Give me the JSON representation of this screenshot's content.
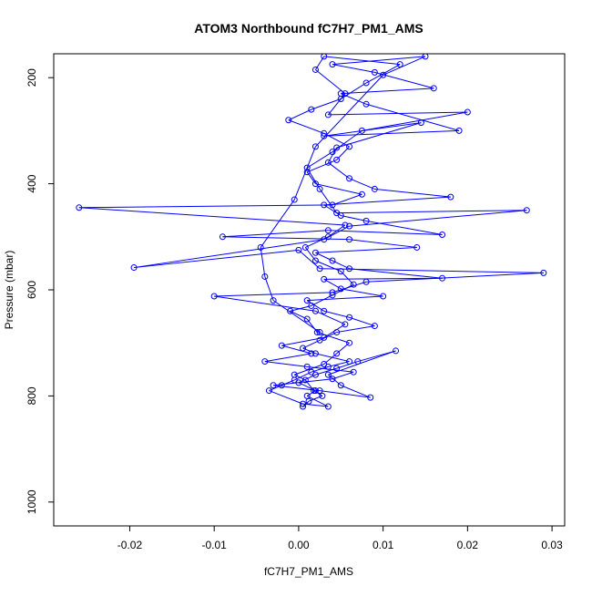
{
  "chart_data": {
    "type": "line",
    "title": "ATOM3 Northbound fC7H7_PM1_AMS",
    "xlabel": "fC7H7_PM1_AMS",
    "ylabel": "Pressure (mbar)",
    "xlim": [
      -0.029,
      0.0315
    ],
    "ylim": [
      1045,
      155
    ],
    "y_axis_reversed": true,
    "grid": false,
    "x_ticks": [
      -0.02,
      -0.01,
      0.0,
      0.01,
      0.02,
      0.03
    ],
    "x_tick_labels": [
      "-0.02",
      "-0.01",
      "0.00",
      "0.01",
      "0.02",
      "0.03"
    ],
    "y_ticks": [
      200,
      400,
      600,
      800,
      1000
    ],
    "y_tick_labels": [
      "200",
      "400",
      "600",
      "800",
      "1000"
    ],
    "series": [
      {
        "color": "#0000ff",
        "marker": "open-circle",
        "line": true,
        "points": [
          [
            0.0005,
            820
          ],
          [
            0.0012,
            810
          ],
          [
            0.0028,
            800
          ],
          [
            0.0018,
            790
          ],
          [
            0.0008,
            770
          ],
          [
            -0.0005,
            760
          ],
          [
            0.003,
            740
          ],
          [
            0.0045,
            720
          ],
          [
            0.006,
            700
          ],
          [
            0.0022,
            680
          ],
          [
            0.001,
            655
          ],
          [
            -0.001,
            640
          ],
          [
            0.0015,
            630
          ],
          [
            0.004,
            610
          ],
          [
            0.0065,
            590
          ],
          [
            0.005,
            565
          ],
          [
            0.002,
            545
          ],
          [
            0.0008,
            520
          ],
          [
            0.0035,
            500
          ],
          [
            0.0055,
            478
          ],
          [
            -0.026,
            445
          ],
          [
            0.004,
            440
          ],
          [
            0.0075,
            420
          ],
          [
            0.002,
            400
          ],
          [
            0.001,
            378
          ],
          [
            0.0045,
            355
          ],
          [
            0.006,
            330
          ],
          [
            0.003,
            305
          ],
          [
            -0.0012,
            280
          ],
          [
            0.0015,
            260
          ],
          [
            0.005,
            240
          ],
          [
            0.008,
            210
          ],
          [
            0.012,
            175
          ],
          [
            0.003,
            160
          ],
          [
            0.002,
            185
          ],
          [
            0.0055,
            230
          ],
          [
            0.0035,
            270
          ],
          [
            0.02,
            265
          ],
          [
            0.0075,
            300
          ],
          [
            0.004,
            340
          ],
          [
            0.001,
            370
          ],
          [
            0.0025,
            410
          ],
          [
            0.0045,
            455
          ],
          [
            0.027,
            450
          ],
          [
            0.006,
            480
          ],
          [
            0.003,
            505
          ],
          [
            -0.0195,
            558
          ],
          [
            0.0,
            525
          ],
          [
            0.0025,
            560
          ],
          [
            0.029,
            568
          ],
          [
            0.008,
            585
          ],
          [
            0.004,
            605
          ],
          [
            -0.01,
            612
          ],
          [
            0.002,
            640
          ],
          [
            0.0055,
            665
          ],
          [
            0.003,
            690
          ],
          [
            -0.002,
            705
          ],
          [
            0.0015,
            720
          ],
          [
            -0.004,
            735
          ],
          [
            0.001,
            745
          ],
          [
            0.0065,
            755
          ],
          [
            0.004,
            768
          ],
          [
            -0.003,
            780
          ],
          [
            0.0025,
            790
          ],
          [
            0.0085,
            803
          ],
          [
            0.005,
            780
          ],
          [
            0.0035,
            760
          ],
          [
            0.0115,
            715
          ],
          [
            0.007,
            735
          ],
          [
            0.0045,
            748
          ],
          [
            0.002,
            760
          ],
          [
            0.0,
            775
          ],
          [
            0.002,
            790
          ],
          [
            0.001,
            800
          ],
          [
            0.0035,
            820
          ],
          [
            0.0005,
            815
          ],
          [
            -0.0035,
            790
          ],
          [
            -0.002,
            780
          ],
          [
            -0.0005,
            770
          ],
          [
            0.0015,
            755
          ],
          [
            0.0035,
            745
          ],
          [
            0.006,
            735
          ],
          [
            0.002,
            720
          ],
          [
            0.0005,
            710
          ],
          [
            0.0025,
            695
          ],
          [
            0.0045,
            680
          ],
          [
            0.009,
            668
          ],
          [
            0.006,
            652
          ],
          [
            0.003,
            640
          ],
          [
            0.001,
            620
          ],
          [
            0.01,
            612
          ],
          [
            0.005,
            598
          ],
          [
            0.003,
            580
          ],
          [
            0.017,
            578
          ],
          [
            0.006,
            560
          ],
          [
            0.004,
            545
          ],
          [
            0.002,
            530
          ],
          [
            0.014,
            520
          ],
          [
            0.006,
            505
          ],
          [
            -0.009,
            500
          ],
          [
            0.0035,
            488
          ],
          [
            0.017,
            496
          ],
          [
            0.008,
            470
          ],
          [
            0.005,
            460
          ],
          [
            0.003,
            440
          ],
          [
            0.018,
            425
          ],
          [
            0.009,
            410
          ],
          [
            0.006,
            390
          ],
          [
            0.0035,
            360
          ],
          [
            0.0045,
            332
          ],
          [
            0.0145,
            285
          ],
          [
            0.003,
            310
          ],
          [
            0.019,
            300
          ],
          [
            0.008,
            250
          ],
          [
            0.005,
            230
          ],
          [
            0.016,
            220
          ],
          [
            0.009,
            190
          ],
          [
            0.004,
            175
          ],
          [
            0.015,
            160
          ],
          [
            0.01,
            195
          ],
          [
            0.002,
            330
          ],
          [
            -0.0005,
            430
          ],
          [
            -0.0045,
            520
          ],
          [
            -0.004,
            575
          ],
          [
            -0.003,
            620
          ],
          [
            0.0025,
            680
          ]
        ]
      }
    ]
  }
}
